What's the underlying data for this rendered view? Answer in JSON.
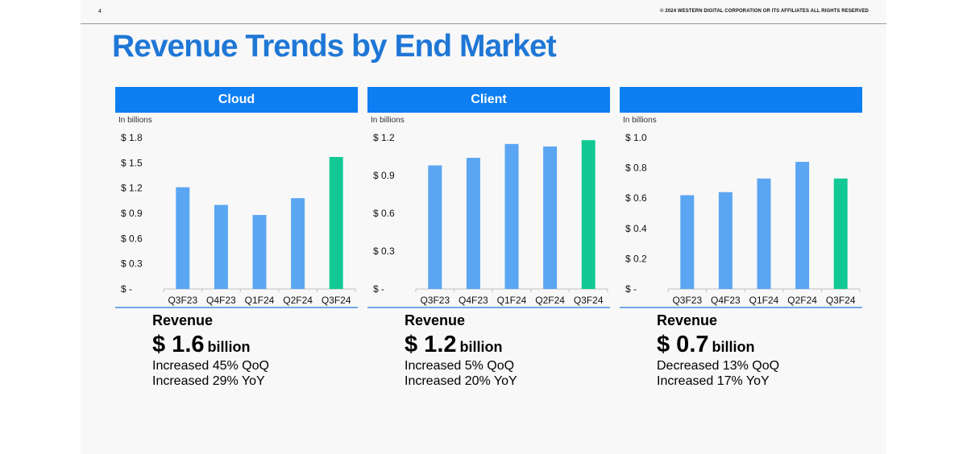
{
  "header": {
    "page_number": "4",
    "copyright": "© 2024 WESTERN DIGITAL CORPORATION OR ITS AFFILIATES  ALL RIGHTS RESERVED"
  },
  "title": "Revenue Trends by End Market",
  "colors": {
    "accent": "#0d7ff2",
    "title": "#1f77d6",
    "bar": "#5ba6f2",
    "highlight": "#12c995"
  },
  "panels": [
    {
      "name": "Cloud",
      "unit_label": "In billions",
      "revenue_label": "Revenue",
      "revenue_value": "$ 1.6",
      "revenue_unit": "billion",
      "qoq": "Increased 45% QoQ",
      "yoy": "Increased 29% YoY"
    },
    {
      "name": "Client",
      "unit_label": "In billions",
      "revenue_label": "Revenue",
      "revenue_value": "$ 1.2",
      "revenue_unit": "billion",
      "qoq": "Increased 5% QoQ",
      "yoy": "Increased 20% YoY"
    },
    {
      "name": "",
      "unit_label": "In billions",
      "revenue_label": "Revenue",
      "revenue_value": "$ 0.7",
      "revenue_unit": "billion",
      "qoq": "Decreased 13% QoQ",
      "yoy": "Increased 17% YoY"
    }
  ],
  "chart_data": [
    {
      "type": "bar",
      "title": "Cloud",
      "ylabel": "In billions",
      "categories": [
        "Q3F23",
        "Q4F23",
        "Q1F24",
        "Q2F24",
        "Q3F24"
      ],
      "values": [
        1.21,
        1.0,
        0.88,
        1.08,
        1.57
      ],
      "ylim": [
        0,
        1.8
      ],
      "ytick_labels": [
        "$ -",
        "$ 0.3",
        "$ 0.6",
        "$ 0.9",
        "$ 1.2",
        "$ 1.5",
        "$ 1.8"
      ],
      "highlight_index": 4,
      "grid": false
    },
    {
      "type": "bar",
      "title": "Client",
      "ylabel": "In billions",
      "categories": [
        "Q3F23",
        "Q4F23",
        "Q1F24",
        "Q2F24",
        "Q3F24"
      ],
      "values": [
        0.98,
        1.04,
        1.15,
        1.13,
        1.18
      ],
      "ylim": [
        0,
        1.2
      ],
      "ytick_labels": [
        "$ -",
        "$ 0.3",
        "$ 0.6",
        "$ 0.9",
        "$ 1.2"
      ],
      "highlight_index": 4,
      "grid": false
    },
    {
      "type": "bar",
      "title": "",
      "ylabel": "In billions",
      "categories": [
        "Q3F23",
        "Q4F23",
        "Q1F24",
        "Q2F24",
        "Q3F24"
      ],
      "values": [
        0.62,
        0.64,
        0.73,
        0.84,
        0.73
      ],
      "ylim": [
        0,
        1.0
      ],
      "ytick_labels": [
        "$ -",
        "$ 0.2",
        "$ 0.4",
        "$ 0.6",
        "$ 0.8",
        "$ 1.0"
      ],
      "highlight_index": 4,
      "grid": false
    }
  ]
}
